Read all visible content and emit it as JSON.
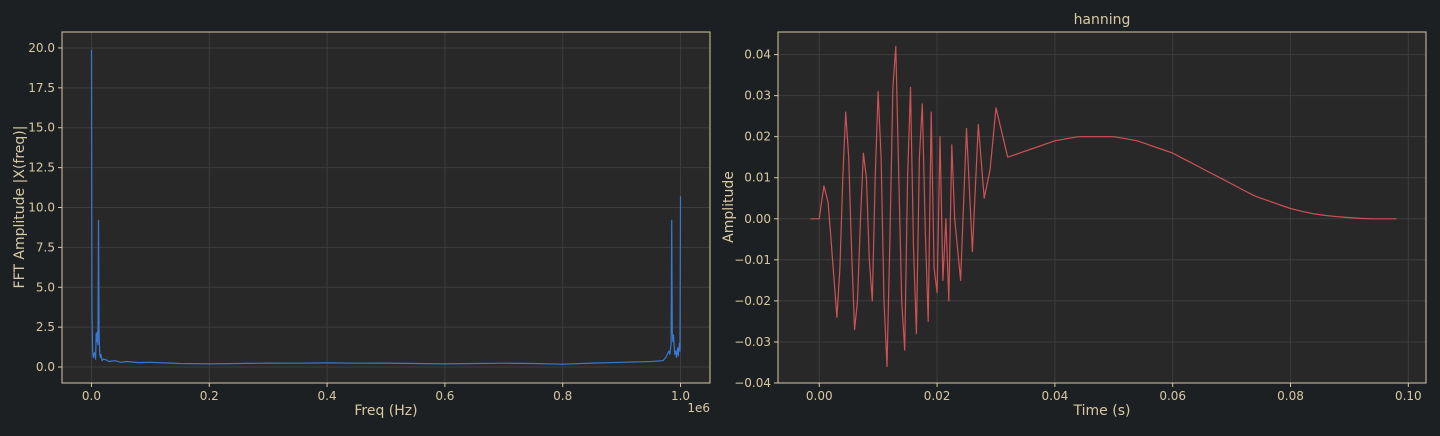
{
  "chart_data": [
    {
      "type": "line",
      "title": "",
      "xlabel": "Freq (Hz)",
      "ylabel": "FFT Amplitude |X(freq)|",
      "x_offset_label": "1e6",
      "xlim": [
        -0.05,
        1.05
      ],
      "ylim": [
        -1.0,
        21.0
      ],
      "xticks": [
        0.0,
        0.2,
        0.4,
        0.6,
        0.8,
        1.0
      ],
      "xtick_labels": [
        "0.0",
        "0.2",
        "0.4",
        "0.6",
        "0.8",
        "1.0"
      ],
      "yticks": [
        0.0,
        2.5,
        5.0,
        7.5,
        10.0,
        12.5,
        15.0,
        17.5,
        20.0
      ],
      "ytick_labels": [
        "0.0",
        "2.5",
        "5.0",
        "7.5",
        "10.0",
        "12.5",
        "15.0",
        "17.5",
        "20.0"
      ],
      "grid": true,
      "series": [
        {
          "color": "#3a78d0",
          "x": [
            0.0,
            0.001,
            0.002,
            0.003,
            0.005,
            0.007,
            0.008,
            0.009,
            0.01,
            0.011,
            0.012,
            0.013,
            0.014,
            0.015,
            0.016,
            0.018,
            0.02,
            0.025,
            0.03,
            0.04,
            0.05,
            0.06,
            0.08,
            0.1,
            0.15,
            0.2,
            0.25,
            0.3,
            0.35,
            0.4,
            0.45,
            0.5,
            0.55,
            0.6,
            0.65,
            0.7,
            0.75,
            0.8,
            0.85,
            0.9,
            0.95,
            0.97,
            0.975,
            0.98,
            0.982,
            0.984,
            0.985,
            0.986,
            0.987,
            0.988,
            0.99,
            0.992,
            0.993,
            0.995,
            0.996,
            0.998,
            0.999,
            1.0
          ],
          "y": [
            19.9,
            3.2,
            1.1,
            0.6,
            0.9,
            0.5,
            2.1,
            1.6,
            2.2,
            1.4,
            9.2,
            2.0,
            0.9,
            0.6,
            0.8,
            0.4,
            0.5,
            0.45,
            0.35,
            0.4,
            0.3,
            0.35,
            0.28,
            0.3,
            0.22,
            0.2,
            0.22,
            0.25,
            0.24,
            0.26,
            0.24,
            0.25,
            0.22,
            0.2,
            0.22,
            0.24,
            0.22,
            0.18,
            0.25,
            0.3,
            0.35,
            0.4,
            0.6,
            1.0,
            0.8,
            1.5,
            9.2,
            2.2,
            1.6,
            2.0,
            0.8,
            1.0,
            0.6,
            1.2,
            0.7,
            1.5,
            1.0,
            10.7
          ]
        }
      ]
    },
    {
      "type": "line",
      "title": "hanning",
      "xlabel": "Time (s)",
      "ylabel": "Amplitude",
      "xlim": [
        -0.007,
        0.103
      ],
      "ylim": [
        -0.04,
        0.0455
      ],
      "xticks": [
        0.0,
        0.02,
        0.04,
        0.06,
        0.08,
        0.1
      ],
      "xtick_labels": [
        "0.00",
        "0.02",
        "0.04",
        "0.06",
        "0.08",
        "0.10"
      ],
      "yticks": [
        -0.04,
        -0.03,
        -0.02,
        -0.01,
        0.0,
        0.01,
        0.02,
        0.03,
        0.04
      ],
      "ytick_labels": [
        "−0.04",
        "−0.03",
        "−0.02",
        "−0.01",
        "0.00",
        "0.01",
        "0.02",
        "0.03",
        "0.04"
      ],
      "grid": true,
      "series": [
        {
          "color": "#cd5256",
          "x": [
            -0.0015,
            0.0,
            0.0008,
            0.0015,
            0.002,
            0.003,
            0.0035,
            0.004,
            0.0045,
            0.005,
            0.0055,
            0.006,
            0.0065,
            0.007,
            0.0075,
            0.008,
            0.0085,
            0.009,
            0.0095,
            0.01,
            0.0105,
            0.011,
            0.0115,
            0.012,
            0.0125,
            0.013,
            0.0135,
            0.014,
            0.0145,
            0.015,
            0.0155,
            0.016,
            0.0165,
            0.017,
            0.0175,
            0.018,
            0.0185,
            0.019,
            0.0195,
            0.02,
            0.0205,
            0.021,
            0.0215,
            0.022,
            0.0225,
            0.023,
            0.024,
            0.025,
            0.026,
            0.027,
            0.028,
            0.029,
            0.03,
            0.032,
            0.034,
            0.036,
            0.038,
            0.04,
            0.042,
            0.044,
            0.046,
            0.048,
            0.05,
            0.052,
            0.054,
            0.056,
            0.058,
            0.06,
            0.062,
            0.064,
            0.066,
            0.068,
            0.07,
            0.072,
            0.074,
            0.076,
            0.078,
            0.08,
            0.082,
            0.084,
            0.086,
            0.088,
            0.09,
            0.092,
            0.094,
            0.096,
            0.098
          ],
          "y": [
            0.0,
            0.0,
            0.008,
            0.004,
            -0.005,
            -0.024,
            -0.012,
            0.01,
            0.026,
            0.015,
            -0.008,
            -0.027,
            -0.02,
            0.0,
            0.016,
            0.01,
            -0.01,
            -0.02,
            0.01,
            0.031,
            0.015,
            -0.02,
            -0.036,
            -0.005,
            0.032,
            0.042,
            0.01,
            -0.02,
            -0.032,
            0.01,
            0.032,
            -0.007,
            -0.028,
            0.015,
            0.028,
            -0.003,
            -0.025,
            0.026,
            -0.012,
            -0.018,
            0.02,
            -0.015,
            0.0,
            -0.02,
            0.018,
            0.0,
            -0.015,
            0.022,
            -0.008,
            0.023,
            0.005,
            0.012,
            0.027,
            0.015,
            0.016,
            0.017,
            0.018,
            0.019,
            0.0195,
            0.02,
            0.02,
            0.02,
            0.02,
            0.0195,
            0.019,
            0.018,
            0.017,
            0.016,
            0.0145,
            0.013,
            0.0115,
            0.01,
            0.0085,
            0.007,
            0.0055,
            0.0045,
            0.0035,
            0.0025,
            0.0018,
            0.0012,
            0.0008,
            0.0005,
            0.0003,
            0.0001,
            0.0,
            0.0,
            0.0
          ]
        }
      ]
    }
  ]
}
